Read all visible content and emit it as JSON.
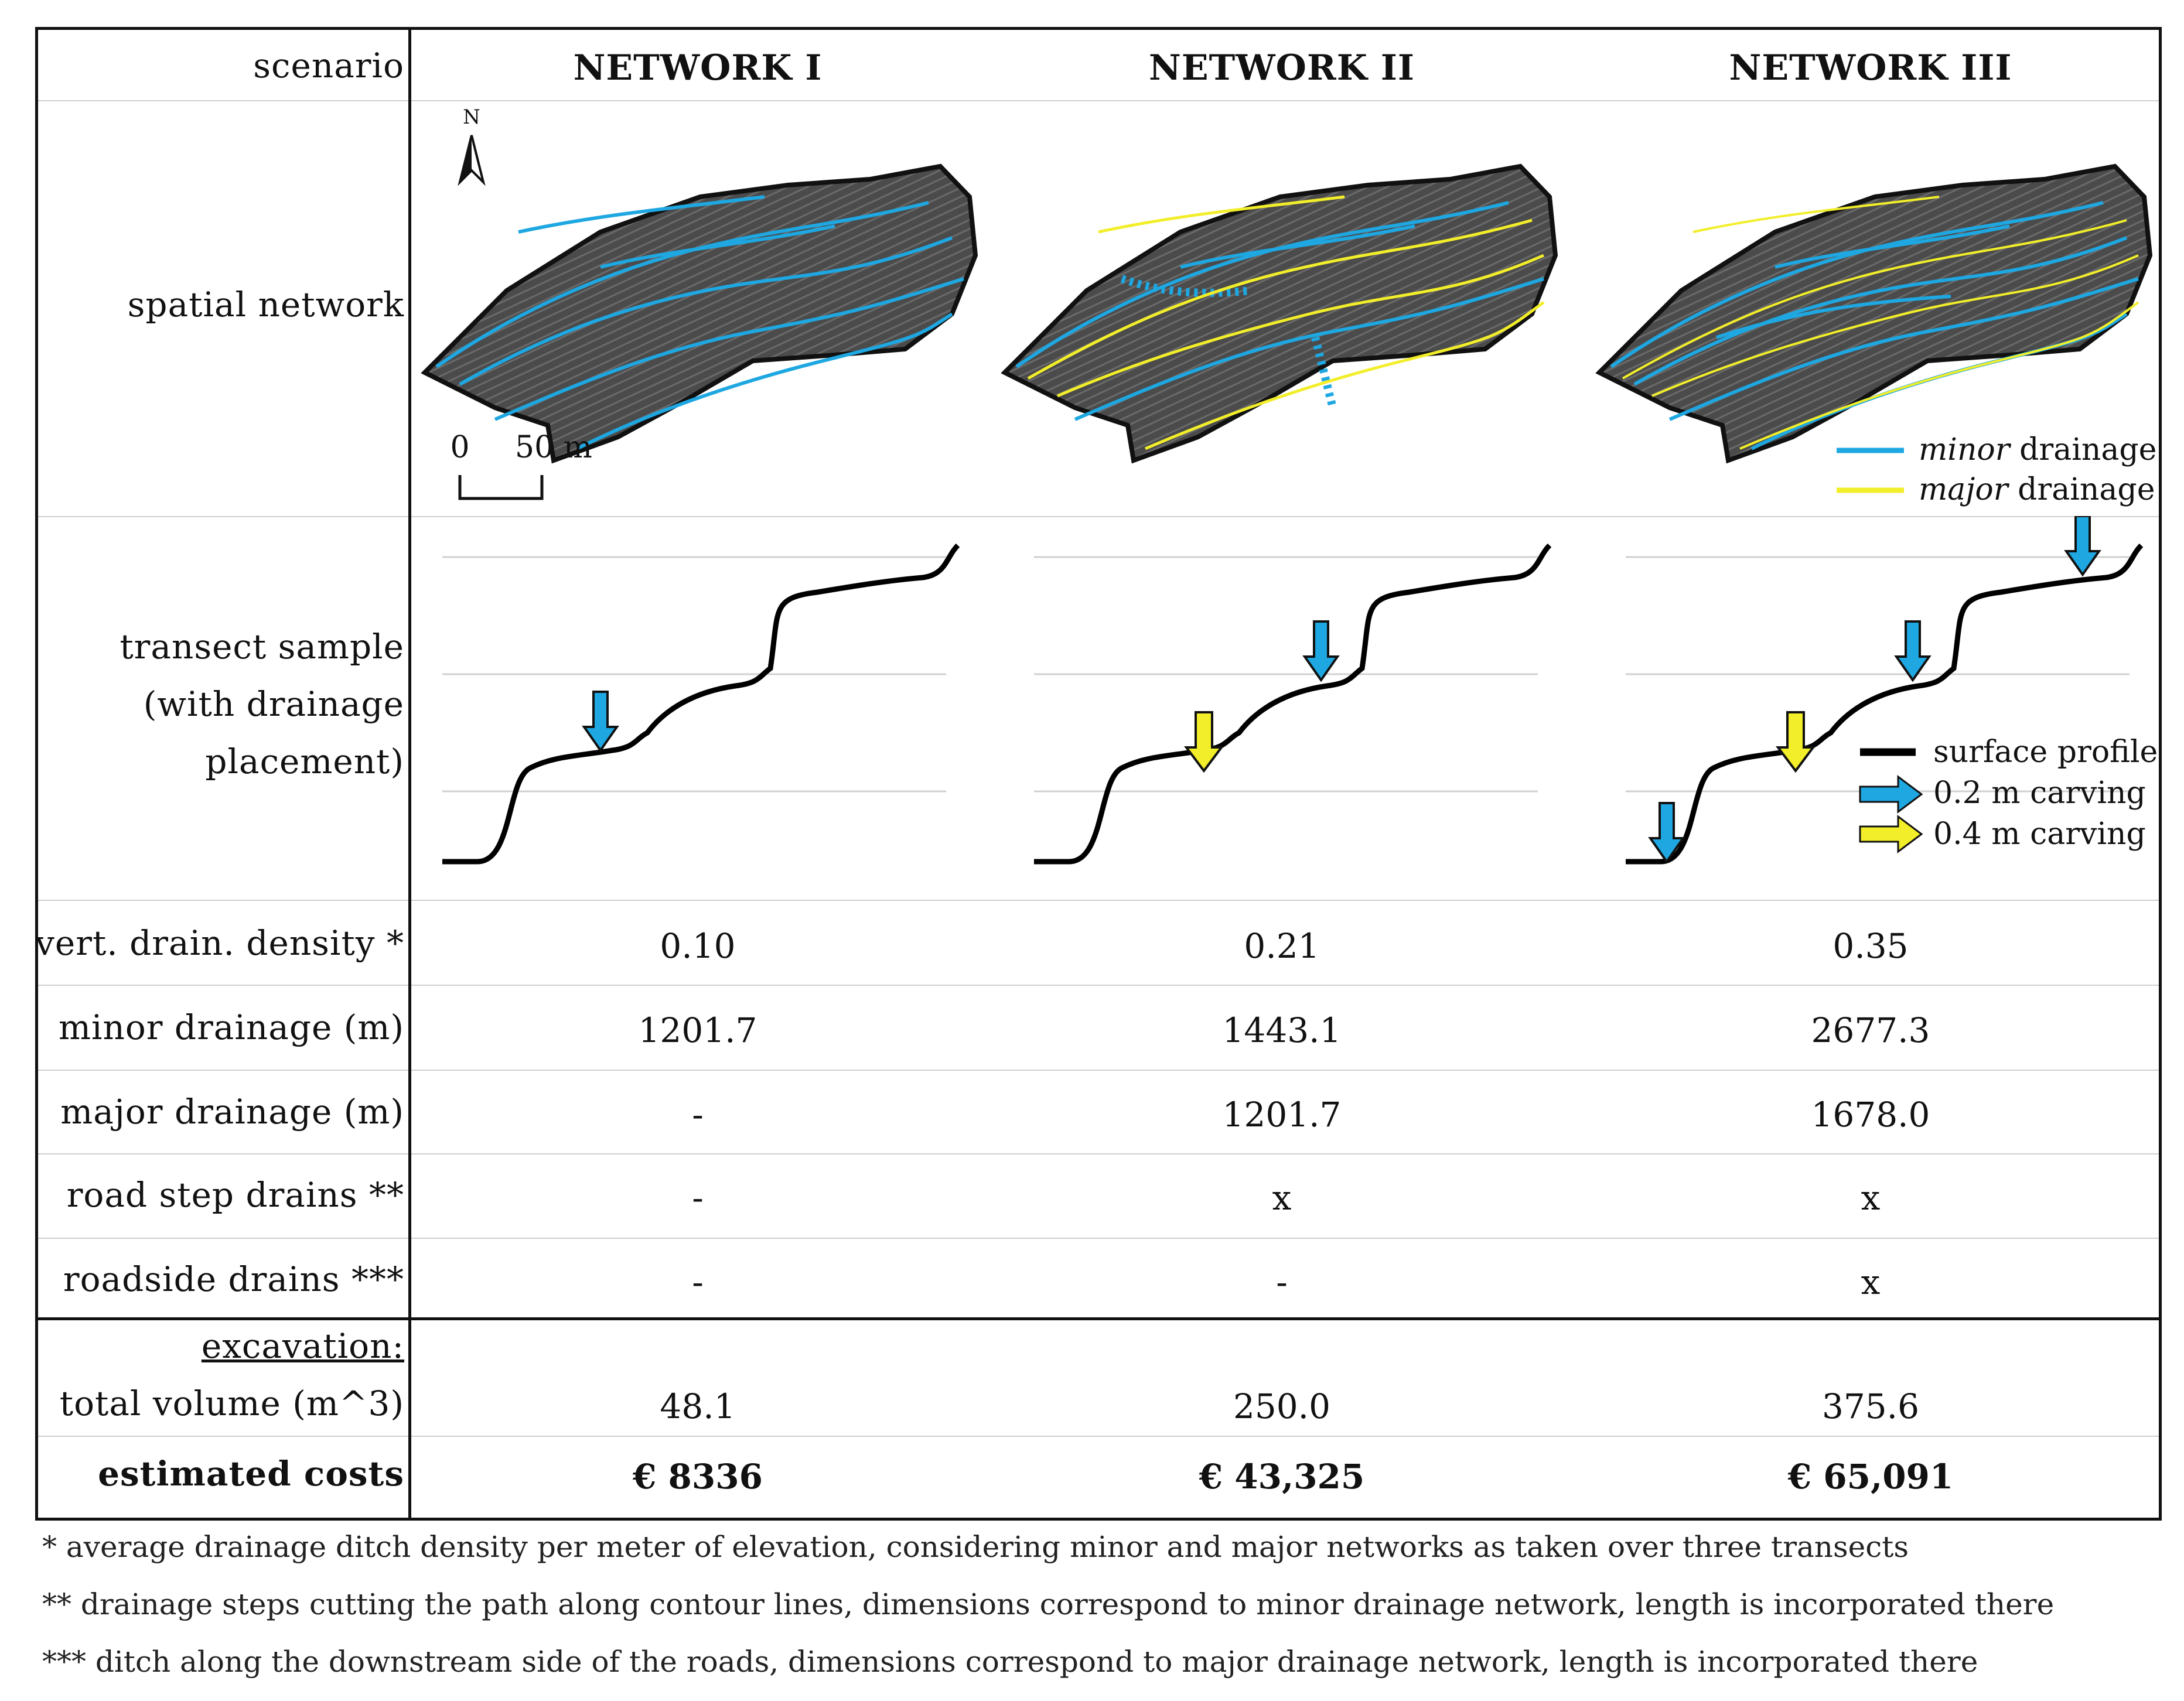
{
  "header": {
    "row_label": "scenario",
    "columns": [
      "NETWORK I",
      "NETWORK II",
      "NETWORK III"
    ]
  },
  "row_labels": {
    "spatial": "spatial network",
    "transect_line1": "transect sample",
    "transect_line2": "(with drainage",
    "transect_line3": "placement)",
    "density": "vert. drain. density *",
    "minor": "minor drainage (m)",
    "major": "major drainage (m)",
    "road_step": "road step drains **",
    "roadside": "roadside drains ***",
    "excavation": "excavation:",
    "volume": "total volume (m^3)",
    "costs": "estimated costs"
  },
  "values": {
    "density": [
      "0.10",
      "0.21",
      "0.35"
    ],
    "minor": [
      "1201.7",
      "1443.1",
      "2677.3"
    ],
    "major": [
      "-",
      "1201.7",
      "1678.0"
    ],
    "road_step": [
      "-",
      "x",
      "x"
    ],
    "roadside": [
      "-",
      "-",
      "x"
    ],
    "volume": [
      "48.1",
      "250.0",
      "375.6"
    ],
    "costs": [
      "€ 8336",
      "€ 43,325",
      "€ 65,091"
    ]
  },
  "map": {
    "north_label": "N",
    "scale_start": "0",
    "scale_end": "50 m",
    "legend_minor_italic": "minor",
    "legend_minor_rest": " drainage",
    "legend_major_italic": "major",
    "legend_major_rest": " drainage"
  },
  "transect_legend": {
    "profile": "surface profile",
    "small": "0.2 m carving",
    "large": "0.4 m carving"
  },
  "colors": {
    "minor": "#1ea7e1",
    "major": "#f2ee2a",
    "terrain": "#4a4a4a",
    "profile": "#000000"
  },
  "footnotes": [
    "* average drainage ditch density per meter of elevation, considering minor and major networks as taken over three transects",
    "** drainage steps cutting the path along contour lines, dimensions correspond to minor drainage network, length is incorporated there",
    "*** ditch along the downstream side of the roads, dimensions correspond to major drainage network, length is incorporated there"
  ]
}
